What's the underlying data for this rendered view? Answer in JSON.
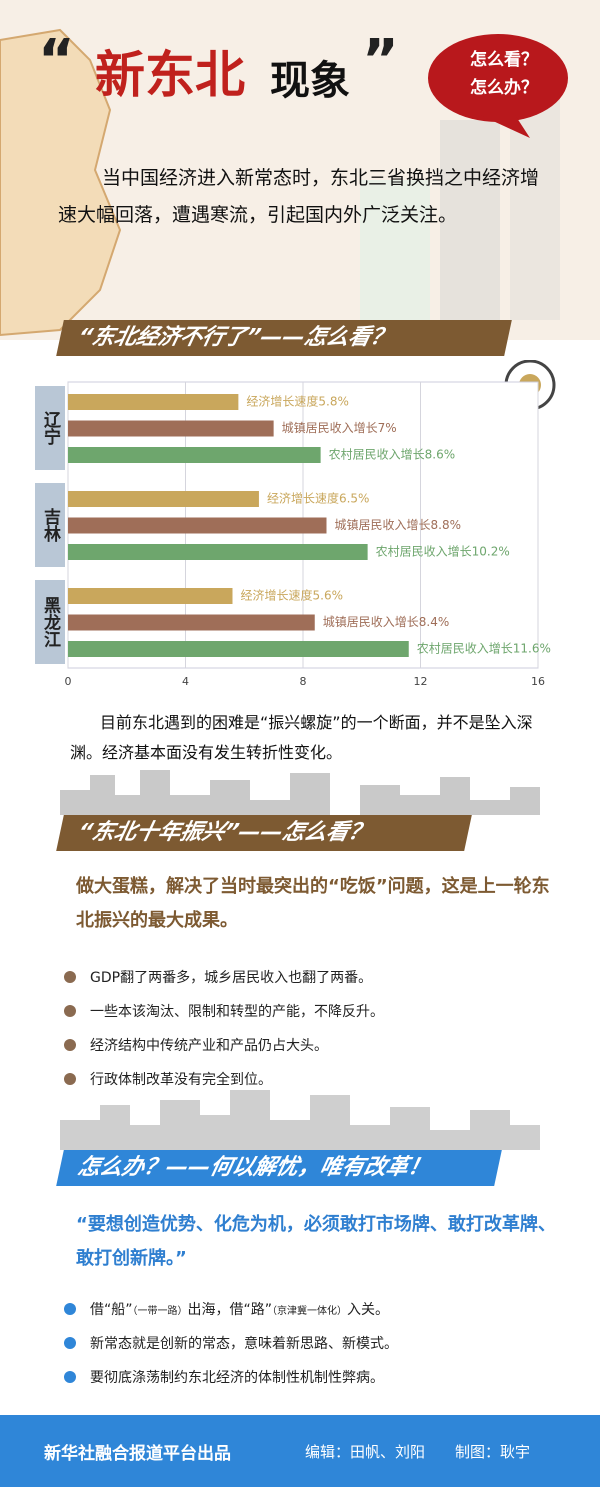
{
  "header": {
    "title_parts": [
      "“",
      "新东北",
      "现象",
      "”"
    ],
    "bubble": [
      "怎么看？",
      "怎么办？"
    ],
    "intro": "当中国经济进入新常态时，东北三省换挡之中经济增速大幅回落，遭遇寒流，引起国内外广泛关注。"
  },
  "section1": {
    "banner": "“东北经济不行了”——怎么看？",
    "text": "目前东北遇到的困难是“振兴螺旋”的一个断面，并不是坠入深渊。经济基本面没有发生转折性变化。"
  },
  "chart_data": {
    "type": "bar",
    "orientation": "horizontal",
    "categories": [
      "辽宁",
      "吉林",
      "黑龙江"
    ],
    "series": [
      {
        "color": "#c9a75c",
        "values": [
          5.8,
          6.5,
          5.6
        ],
        "value_labels": [
          "经济增长速度5.8%",
          "经济增长速度6.5%",
          "经济增长速度5.6%"
        ]
      },
      {
        "color": "#9f6e58",
        "values": [
          7,
          8.8,
          8.4
        ],
        "value_labels": [
          "城镇居民收入增长7%",
          "城镇居民收入增长8.8%",
          "城镇居民收入增长8.4%"
        ]
      },
      {
        "color": "#6ea66d",
        "values": [
          8.6,
          10.2,
          11.6
        ],
        "value_labels": [
          "农村居民收入增长8.6%",
          "农村居民收入增长10.2%",
          "农村居民收入增长11.6%"
        ]
      }
    ],
    "xlim": [
      0,
      16
    ],
    "xticks": [
      0,
      4,
      8,
      12,
      16
    ],
    "grid": true
  },
  "section2": {
    "banner": "“东北十年振兴”——怎么看？",
    "lead": "做大蛋糕，解决了当时最突出的“吃饭”问题，这是上一轮东北振兴的最大成果。",
    "bullets": [
      "GDP翻了两番多，城乡居民收入也翻了两番。",
      "一些本该淘汰、限制和转型的产能，不降反升。",
      "经济结构中传统产业和产品仍占大头。",
      "行政体制改革没有完全到位。"
    ]
  },
  "section3": {
    "banner": "怎么办？——何以解忧，唯有改革！",
    "quote": "“要想创造优势、化危为机，必须敢打市场牌、敢打改革牌、敢打创新牌。”",
    "bullet1": [
      "借“船”",
      "（一带一路）",
      "出海，借“路”",
      "（京津冀一体化）",
      "入关。"
    ],
    "bullets": [
      "新常态就是创新的常态，意味着新思路、新模式。",
      "要彻底涤荡制约东北经济的体制性机制性弊病。"
    ]
  },
  "footer": {
    "producer": "新华社融合报道平台出品",
    "editor": "编辑：田帆、刘阳",
    "designer": "制图：耿宇"
  }
}
